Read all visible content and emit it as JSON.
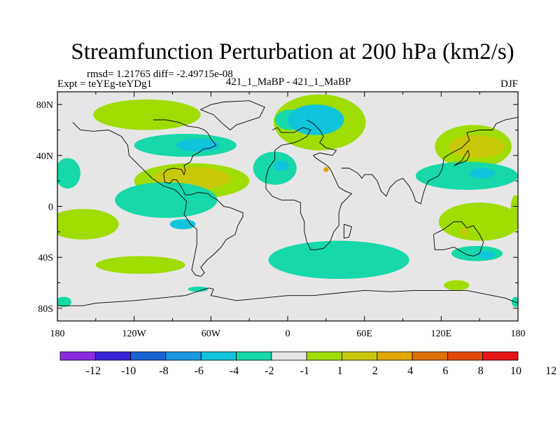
{
  "chart_data": {
    "type": "heatmap",
    "title": "Streamfunction Perturbation at 200 hPa (km2/s)",
    "stats_line": "rmsd= 1.21765 diff= -2.49715e-08",
    "left_label": "Expt = teYEg-teYDg1",
    "center_label": "421_1_MaBP - 421_1_MaBP",
    "right_label": "DJF",
    "xlim": [
      -180,
      180
    ],
    "ylim": [
      -90,
      90
    ],
    "x_ticks": [
      {
        "value": -180,
        "label": "180"
      },
      {
        "value": -120,
        "label": "120W"
      },
      {
        "value": -60,
        "label": "60W"
      },
      {
        "value": 0,
        "label": "0"
      },
      {
        "value": 60,
        "label": "60E"
      },
      {
        "value": 120,
        "label": "120E"
      },
      {
        "value": 180,
        "label": "180"
      }
    ],
    "y_ticks": [
      {
        "value": 80,
        "label": "80N"
      },
      {
        "value": 40,
        "label": "40N"
      },
      {
        "value": 0,
        "label": "0"
      },
      {
        "value": -40,
        "label": "40S"
      },
      {
        "value": -80,
        "label": "80S"
      }
    ],
    "colorbar": {
      "colors": [
        "#8a2be2",
        "#3a24d8",
        "#1a63d6",
        "#1a98e2",
        "#10c4dc",
        "#17d8a8",
        "#e6e6e6",
        "#a0dc00",
        "#c8c80a",
        "#e0a800",
        "#e07000",
        "#e04a00",
        "#e61414"
      ],
      "labels": [
        "-12",
        "-10",
        "-8",
        "-6",
        "-4",
        "-2",
        "-1",
        "1",
        "2",
        "4",
        "6",
        "8",
        "10",
        "12"
      ]
    },
    "contour_regions": [
      {
        "level": "1",
        "color": "#a0dc00",
        "lon": -110,
        "lat": 72,
        "rlon": 42,
        "rlat": 12
      },
      {
        "level": "1",
        "color": "#a0dc00",
        "lon": 25,
        "lat": 66,
        "rlon": 36,
        "rlat": 22
      },
      {
        "level": "-1",
        "color": "#17d8a8",
        "lon": 2,
        "lat": 68,
        "rlon": 12,
        "rlat": 8
      },
      {
        "level": "-2",
        "color": "#10c4dc",
        "lon": 22,
        "lat": 68,
        "rlon": 22,
        "rlat": 12
      },
      {
        "level": "1",
        "color": "#a0dc00",
        "lon": 145,
        "lat": 47,
        "rlon": 30,
        "rlat": 17
      },
      {
        "level": "2",
        "color": "#c8c80a",
        "lon": 148,
        "lat": 47,
        "rlon": 22,
        "rlat": 9
      },
      {
        "level": "-1",
        "color": "#17d8a8",
        "lon": -80,
        "lat": 48,
        "rlon": 40,
        "rlat": 9
      },
      {
        "level": "-2",
        "color": "#10c4dc",
        "lon": -70,
        "lat": 48,
        "rlon": 17,
        "rlat": 5
      },
      {
        "level": "-1",
        "color": "#17d8a8",
        "lon": -172,
        "lat": 26,
        "rlon": 10,
        "rlat": 12
      },
      {
        "level": "1",
        "color": "#a0dc00",
        "lon": -75,
        "lat": 20,
        "rlon": 45,
        "rlat": 14
      },
      {
        "level": "2",
        "color": "#c8c80a",
        "lon": -75,
        "lat": 22,
        "rlon": 30,
        "rlat": 9
      },
      {
        "level": "-1",
        "color": "#17d8a8",
        "lon": -10,
        "lat": 30,
        "rlon": 17,
        "rlat": 13
      },
      {
        "level": "-2",
        "color": "#10c4dc",
        "lon": -5,
        "lat": 32,
        "rlon": 6,
        "rlat": 4
      },
      {
        "level": "-1",
        "color": "#17d8a8",
        "lon": 140,
        "lat": 24,
        "rlon": 40,
        "rlat": 11
      },
      {
        "level": "-2",
        "color": "#10c4dc",
        "lon": 152,
        "lat": 26,
        "rlon": 10,
        "rlat": 4
      },
      {
        "level": "-1",
        "color": "#17d8a8",
        "lon": -95,
        "lat": 5,
        "rlon": 40,
        "rlat": 14
      },
      {
        "level": "-2",
        "color": "#10c4dc",
        "lon": -82,
        "lat": -14,
        "rlon": 10,
        "rlat": 4
      },
      {
        "level": "1",
        "color": "#a0dc00",
        "lon": -160,
        "lat": -14,
        "rlon": 28,
        "rlat": 12
      },
      {
        "level": "1",
        "color": "#a0dc00",
        "lon": 150,
        "lat": -12,
        "rlon": 32,
        "rlat": 15
      },
      {
        "level": "2",
        "color": "#c8c80a",
        "lon": 138,
        "lat": -20,
        "rlon": 3,
        "rlat": 3
      },
      {
        "level": "-1",
        "color": "#17d8a8",
        "lon": 40,
        "lat": -42,
        "rlon": 55,
        "rlat": 15
      },
      {
        "level": "-1",
        "color": "#17d8a8",
        "lon": 148,
        "lat": -37,
        "rlon": 20,
        "rlat": 6
      },
      {
        "level": "-2",
        "color": "#10c4dc",
        "lon": 155,
        "lat": -38,
        "rlon": 7,
        "rlat": 3
      },
      {
        "level": "1",
        "color": "#a0dc00",
        "lon": -115,
        "lat": -46,
        "rlon": 35,
        "rlat": 7
      },
      {
        "level": "-1",
        "color": "#17d8a8",
        "lon": -70,
        "lat": -65,
        "rlon": 8,
        "rlat": 2
      },
      {
        "level": "1",
        "color": "#a0dc00",
        "lon": 132,
        "lat": -62,
        "rlon": 10,
        "rlat": 4
      },
      {
        "level": "-1",
        "color": "#17d8a8",
        "lon": -175,
        "lat": -75,
        "rlon": 6,
        "rlat": 4
      },
      {
        "level": "-1",
        "color": "#17d8a8",
        "lon": 178,
        "lat": -75,
        "rlon": 3,
        "rlat": 4
      },
      {
        "level": "1",
        "color": "#a0dc00",
        "lon": 178,
        "lat": -5,
        "rlon": 4,
        "rlat": 14
      },
      {
        "level": "4",
        "color": "#e0a800",
        "lon": 30,
        "lat": 29,
        "rlon": 2,
        "rlat": 2
      }
    ],
    "coastlines": [
      {
        "name": "europe-africa",
        "points": [
          [
            -12,
            60
          ],
          [
            -8,
            62
          ],
          [
            -5,
            58
          ],
          [
            5,
            58
          ],
          [
            12,
            62
          ],
          [
            18,
            60
          ],
          [
            15,
            55
          ],
          [
            10,
            52
          ],
          [
            5,
            50
          ],
          [
            -5,
            48
          ],
          [
            -10,
            44
          ],
          [
            -10,
            37
          ],
          [
            -15,
            30
          ],
          [
            -17,
            22
          ],
          [
            -17,
            14
          ],
          [
            -12,
            8
          ],
          [
            -5,
            5
          ],
          [
            5,
            5
          ],
          [
            10,
            3
          ],
          [
            10,
            -5
          ],
          [
            13,
            -12
          ],
          [
            13,
            -20
          ],
          [
            15,
            -28
          ],
          [
            18,
            -34
          ],
          [
            22,
            -34
          ],
          [
            28,
            -33
          ],
          [
            33,
            -28
          ],
          [
            36,
            -20
          ],
          [
            40,
            -15
          ],
          [
            40,
            -5
          ],
          [
            42,
            2
          ],
          [
            50,
            10
          ],
          [
            45,
            12
          ],
          [
            40,
            15
          ],
          [
            34,
            28
          ],
          [
            32,
            31
          ],
          [
            28,
            34
          ],
          [
            22,
            38
          ],
          [
            20,
            40
          ],
          [
            25,
            42
          ],
          [
            30,
            41
          ],
          [
            35,
            40
          ],
          [
            38,
            44
          ],
          [
            30,
            46
          ],
          [
            25,
            50
          ],
          [
            28,
            55
          ],
          [
            25,
            60
          ],
          [
            20,
            65
          ],
          [
            15,
            68
          ]
        ]
      },
      {
        "name": "asia-coast",
        "points": [
          [
            42,
            30
          ],
          [
            48,
            30
          ],
          [
            55,
            26
          ],
          [
            58,
            22
          ],
          [
            60,
            25
          ],
          [
            66,
            25
          ],
          [
            70,
            20
          ],
          [
            73,
            12
          ],
          [
            77,
            8
          ],
          [
            80,
            15
          ],
          [
            85,
            20
          ],
          [
            90,
            22
          ],
          [
            95,
            16
          ],
          [
            98,
            10
          ],
          [
            100,
            4
          ],
          [
            104,
            2
          ],
          [
            106,
            10
          ],
          [
            108,
            16
          ],
          [
            110,
            20
          ],
          [
            118,
            24
          ],
          [
            121,
            30
          ],
          [
            122,
            38
          ],
          [
            125,
            40
          ],
          [
            130,
            43
          ],
          [
            136,
            46
          ],
          [
            142,
            52
          ],
          [
            140,
            58
          ],
          [
            150,
            60
          ],
          [
            160,
            60
          ],
          [
            163,
            65
          ],
          [
            170,
            68
          ],
          [
            180,
            70
          ]
        ]
      },
      {
        "name": "americas-west",
        "points": [
          [
            -168,
            66
          ],
          [
            -162,
            60
          ],
          [
            -152,
            59
          ],
          [
            -140,
            60
          ],
          [
            -130,
            55
          ],
          [
            -125,
            48
          ],
          [
            -124,
            40
          ],
          [
            -118,
            34
          ],
          [
            -112,
            28
          ],
          [
            -106,
            22
          ],
          [
            -97,
            16
          ],
          [
            -88,
            13
          ],
          [
            -83,
            8
          ],
          [
            -79,
            4
          ],
          [
            -80,
            -3
          ],
          [
            -81,
            -6
          ],
          [
            -76,
            -14
          ],
          [
            -71,
            -18
          ],
          [
            -71,
            -30
          ],
          [
            -73,
            -40
          ],
          [
            -75,
            -50
          ],
          [
            -72,
            -54
          ],
          [
            -68,
            -55
          ]
        ]
      },
      {
        "name": "americas-east",
        "points": [
          [
            -68,
            -55
          ],
          [
            -65,
            -52
          ],
          [
            -68,
            -48
          ],
          [
            -63,
            -42
          ],
          [
            -58,
            -38
          ],
          [
            -52,
            -32
          ],
          [
            -48,
            -26
          ],
          [
            -41,
            -22
          ],
          [
            -39,
            -15
          ],
          [
            -35,
            -8
          ],
          [
            -35,
            -5
          ],
          [
            -45,
            -1
          ],
          [
            -50,
            0
          ],
          [
            -55,
            5
          ],
          [
            -60,
            8
          ],
          [
            -62,
            10
          ],
          [
            -70,
            11
          ],
          [
            -76,
            9
          ],
          [
            -80,
            9
          ],
          [
            -83,
            15
          ],
          [
            -87,
            21
          ],
          [
            -90,
            21
          ],
          [
            -92,
            18
          ],
          [
            -96,
            19
          ],
          [
            -97,
            26
          ],
          [
            -94,
            29
          ],
          [
            -89,
            30
          ],
          [
            -83,
            29
          ],
          [
            -81,
            25
          ],
          [
            -80,
            28
          ],
          [
            -81,
            32
          ],
          [
            -76,
            35
          ],
          [
            -74,
            40
          ],
          [
            -70,
            42
          ],
          [
            -66,
            45
          ],
          [
            -60,
            46
          ],
          [
            -56,
            48
          ],
          [
            -60,
            53
          ],
          [
            -62,
            57
          ],
          [
            -65,
            60
          ],
          [
            -70,
            62
          ],
          [
            -78,
            63
          ],
          [
            -85,
            66
          ],
          [
            -95,
            68
          ],
          [
            -105,
            68
          ]
        ]
      },
      {
        "name": "greenland",
        "points": [
          [
            -45,
            60
          ],
          [
            -40,
            64
          ],
          [
            -22,
            70
          ],
          [
            -18,
            78
          ],
          [
            -30,
            83
          ],
          [
            -50,
            82
          ],
          [
            -60,
            80
          ],
          [
            -68,
            76
          ],
          [
            -58,
            72
          ],
          [
            -52,
            66
          ],
          [
            -45,
            60
          ]
        ]
      },
      {
        "name": "australia",
        "points": [
          [
            114,
            -22
          ],
          [
            122,
            -18
          ],
          [
            130,
            -12
          ],
          [
            136,
            -12
          ],
          [
            140,
            -17
          ],
          [
            145,
            -15
          ],
          [
            150,
            -22
          ],
          [
            153,
            -28
          ],
          [
            150,
            -37
          ],
          [
            145,
            -39
          ],
          [
            140,
            -38
          ],
          [
            135,
            -35
          ],
          [
            130,
            -32
          ],
          [
            122,
            -34
          ],
          [
            115,
            -34
          ],
          [
            114,
            -22
          ]
        ]
      },
      {
        "name": "antarctica",
        "points": [
          [
            -180,
            -78
          ],
          [
            -160,
            -78
          ],
          [
            -150,
            -76
          ],
          [
            -120,
            -74
          ],
          [
            -100,
            -72
          ],
          [
            -80,
            -70
          ],
          [
            -62,
            -64
          ],
          [
            -58,
            -65
          ],
          [
            -60,
            -70
          ],
          [
            -40,
            -74
          ],
          [
            -20,
            -72
          ],
          [
            0,
            -70
          ],
          [
            20,
            -70
          ],
          [
            40,
            -68
          ],
          [
            60,
            -66
          ],
          [
            80,
            -67
          ],
          [
            100,
            -66
          ],
          [
            120,
            -66
          ],
          [
            140,
            -66
          ],
          [
            160,
            -70
          ],
          [
            170,
            -72
          ],
          [
            180,
            -76
          ]
        ]
      },
      {
        "name": "madagascar",
        "points": [
          [
            44,
            -14
          ],
          [
            50,
            -16
          ],
          [
            48,
            -24
          ],
          [
            44,
            -25
          ],
          [
            44,
            -14
          ]
        ]
      },
      {
        "name": "japan",
        "points": [
          [
            130,
            32
          ],
          [
            135,
            34
          ],
          [
            140,
            36
          ],
          [
            142,
            40
          ],
          [
            141,
            44
          ],
          [
            139,
            41
          ],
          [
            136,
            36
          ],
          [
            130,
            32
          ]
        ]
      }
    ]
  }
}
